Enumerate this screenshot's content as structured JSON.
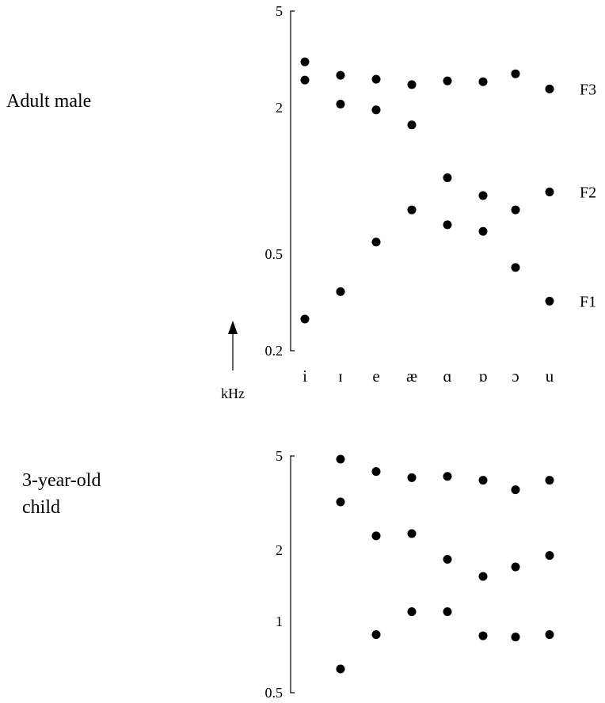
{
  "chart_data": [
    {
      "type": "scatter",
      "title": "Adult male",
      "y_unit": "kHz",
      "y_scale": "log",
      "ylim": [
        0.2,
        5
      ],
      "yticks": [
        "5",
        "2",
        "0.5",
        "0.2"
      ],
      "categories": [
        "i",
        "ɪ",
        "e",
        "æ",
        "ɑ",
        "ɒ",
        "ɔ",
        "u"
      ],
      "series": [
        {
          "name": "F1",
          "values": [
            0.27,
            0.35,
            0.56,
            0.76,
            0.66,
            0.62,
            0.44,
            0.32
          ]
        },
        {
          "name": "F2",
          "values": [
            2.6,
            2.07,
            1.96,
            1.7,
            1.03,
            0.87,
            0.76,
            0.9
          ]
        },
        {
          "name": "F3",
          "values": [
            3.09,
            2.72,
            2.62,
            2.49,
            2.58,
            2.56,
            2.76,
            2.39
          ]
        }
      ]
    },
    {
      "type": "scatter",
      "title": "3-year-old child",
      "y_scale": "log",
      "ylim": [
        0.5,
        5
      ],
      "yticks": [
        "5",
        "2",
        "1",
        "0.5"
      ],
      "categories": [
        "i",
        "ɪ",
        "e",
        "æ",
        "ɑ",
        "ɒ",
        "ɔ",
        "u"
      ],
      "series": [
        {
          "values": [
            null,
            0.63,
            0.88,
            1.1,
            1.1,
            0.87,
            0.86,
            0.88
          ]
        },
        {
          "values": [
            null,
            3.2,
            2.3,
            2.35,
            1.83,
            1.55,
            1.7,
            1.9
          ]
        },
        {
          "values": [
            null,
            4.85,
            4.3,
            4.05,
            4.1,
            3.95,
            3.6,
            3.95
          ]
        }
      ]
    }
  ]
}
